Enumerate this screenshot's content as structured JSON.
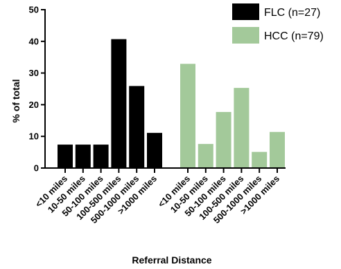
{
  "chart_data": {
    "type": "bar",
    "xlabel": "Referral Distance",
    "ylabel": "% of total",
    "ylim": [
      0,
      50
    ],
    "yticks": [
      "0",
      "10",
      "20",
      "30",
      "40",
      "50"
    ],
    "categories": [
      "<10 miles",
      "10-50 miles",
      "50-100 miles",
      "100-500 miles",
      "500-1000 miles",
      ">1000 miles"
    ],
    "legend_position": "top-right",
    "grid": false,
    "series": [
      {
        "name": "FLC (n=27)",
        "color": "#000000",
        "values": [
          7.4,
          7.4,
          7.4,
          40.7,
          25.9,
          11.1
        ]
      },
      {
        "name": "HCC (n=79)",
        "color": "#a3c99a",
        "values": [
          32.9,
          7.6,
          17.7,
          25.3,
          5.1,
          11.4
        ]
      }
    ]
  }
}
